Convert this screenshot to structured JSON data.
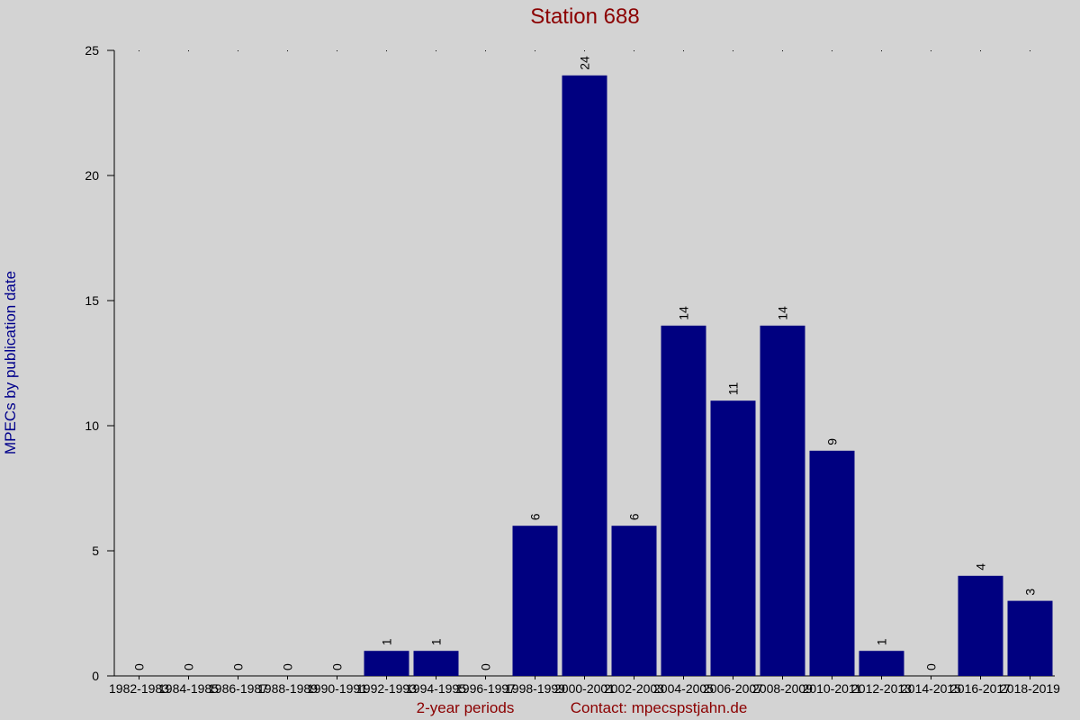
{
  "chart_data": {
    "type": "bar",
    "title": "Station 688",
    "x_label": "2-year periods",
    "y_label": "MPECs by publication date",
    "contact": "Contact: mpecspstjahn.de",
    "categories": [
      "1982-1983",
      "1984-1985",
      "1986-1987",
      "1988-1989",
      "1990-1991",
      "1992-1993",
      "1994-1995",
      "1996-1997",
      "1998-1999",
      "2000-2001",
      "2002-2003",
      "2004-2005",
      "2006-2007",
      "2008-2009",
      "2010-2011",
      "2012-2013",
      "2014-2015",
      "2016-2017",
      "2018-2019"
    ],
    "values": [
      0,
      0,
      0,
      0,
      0,
      1,
      1,
      0,
      6,
      24,
      6,
      14,
      11,
      14,
      9,
      1,
      0,
      4,
      3
    ],
    "color": "#000080",
    "ylim": [
      0,
      25
    ],
    "yticks": [
      0,
      5,
      10,
      15,
      20,
      25
    ]
  }
}
